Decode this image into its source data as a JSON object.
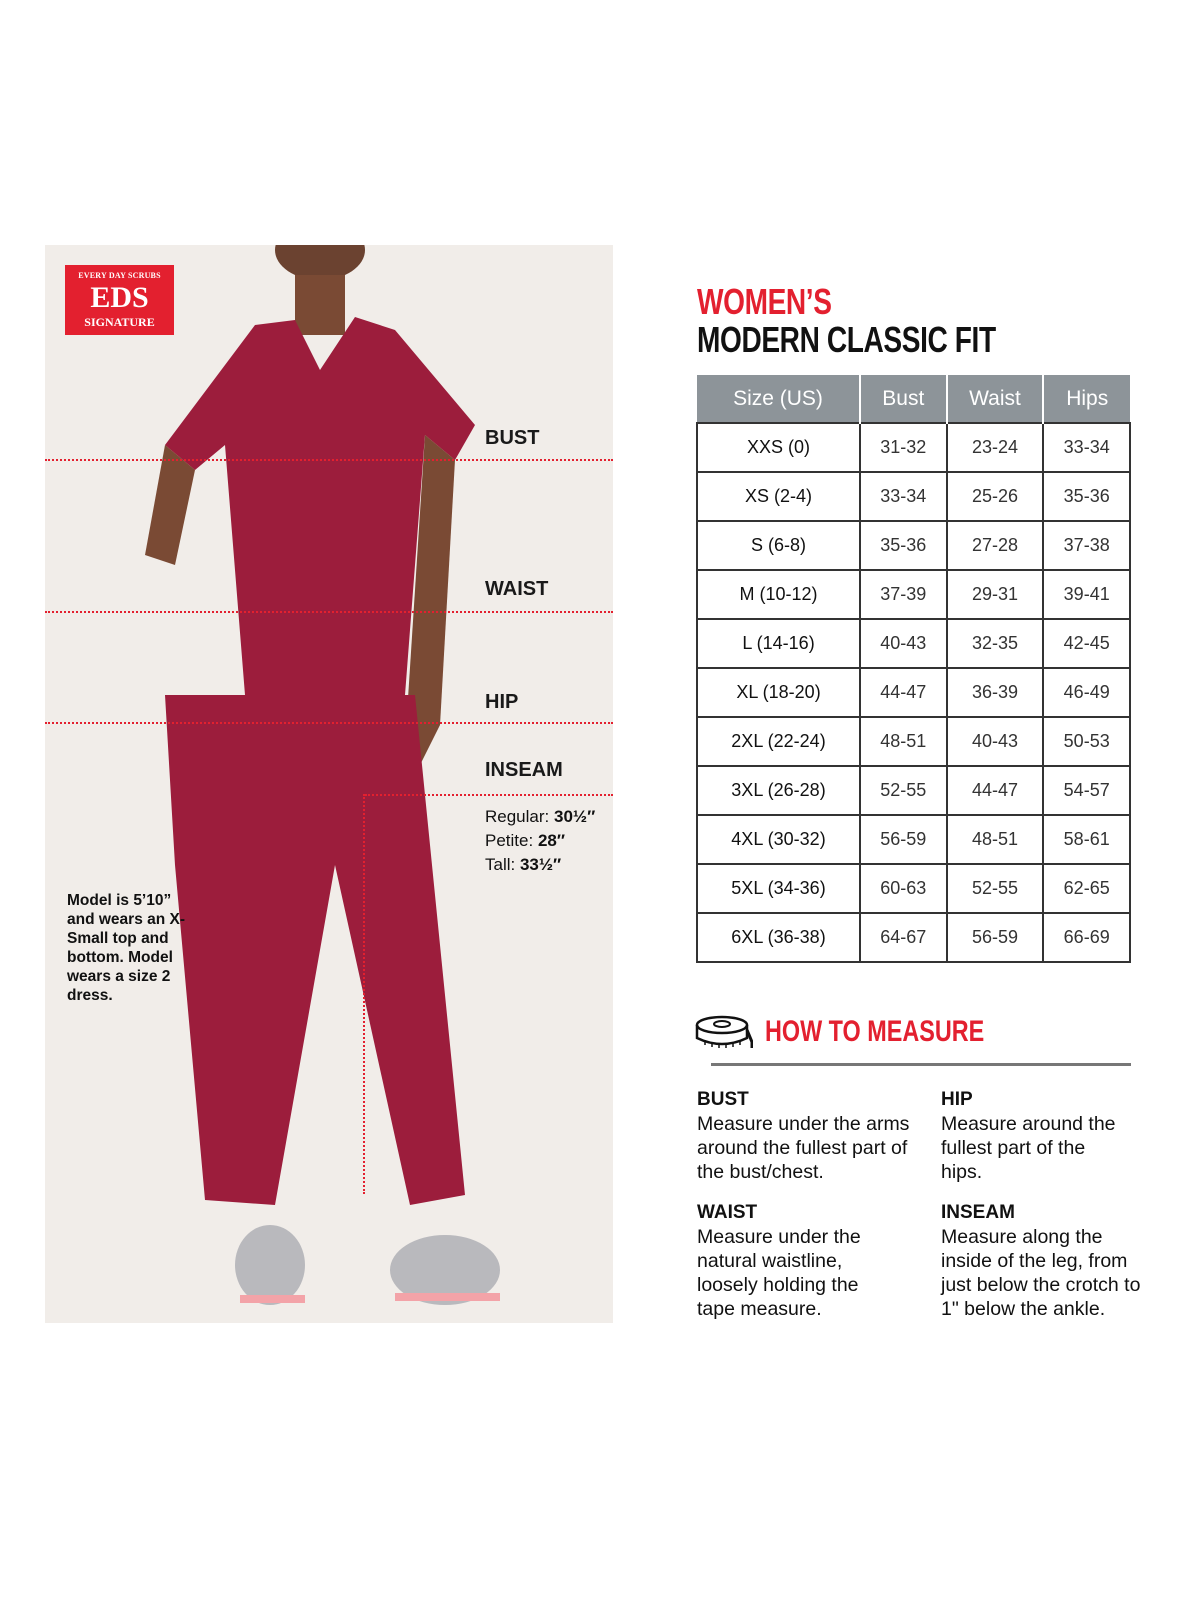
{
  "brand": {
    "logo_top": "EVERY DAY SCRUBS",
    "logo_main": "EDS",
    "logo_bottom": "SIGNATURE",
    "color": "#e3202f"
  },
  "figure": {
    "labels": {
      "bust": "BUST",
      "waist": "WAIST",
      "hip": "HIP",
      "inseam": "INSEAM"
    },
    "inseam": [
      {
        "label": "Regular:",
        "value": "30½″"
      },
      {
        "label": "Petite:",
        "value": "28″"
      },
      {
        "label": "Tall:",
        "value": "33½″"
      }
    ],
    "model_note": "Model is 5’10” and wears an X-Small top and bottom. Model wears a size 2 dress.",
    "scrub_color": "#9c1d3c"
  },
  "chart": {
    "title_line1": "WOMEN’S",
    "title_line2": "MODERN CLASSIC FIT",
    "headers": [
      "Size (US)",
      "Bust",
      "Waist",
      "Hips"
    ],
    "rows": [
      [
        "XXS (0)",
        "31-32",
        "23-24",
        "33-34"
      ],
      [
        "XS (2-4)",
        "33-34",
        "25-26",
        "35-36"
      ],
      [
        "S (6-8)",
        "35-36",
        "27-28",
        "37-38"
      ],
      [
        "M (10-12)",
        "37-39",
        "29-31",
        "39-41"
      ],
      [
        "L (14-16)",
        "40-43",
        "32-35",
        "42-45"
      ],
      [
        "XL (18-20)",
        "44-47",
        "36-39",
        "46-49"
      ],
      [
        "2XL (22-24)",
        "48-51",
        "40-43",
        "50-53"
      ],
      [
        "3XL (26-28)",
        "52-55",
        "44-47",
        "54-57"
      ],
      [
        "4XL (30-32)",
        "56-59",
        "48-51",
        "58-61"
      ],
      [
        "5XL (34-36)",
        "60-63",
        "52-55",
        "62-65"
      ],
      [
        "6XL (36-38)",
        "64-67",
        "56-59",
        "66-69"
      ]
    ]
  },
  "how_to_measure": {
    "heading": "HOW TO MEASURE",
    "icon": "tape-measure-icon",
    "items": [
      {
        "title": "BUST",
        "text": "Measure under the arms around the fullest part of the bust/chest."
      },
      {
        "title": "HIP",
        "text": "Measure around the fullest part of the hips."
      },
      {
        "title": "WAIST",
        "text": "Measure under the natural waistline, loosely holding the tape measure."
      },
      {
        "title": "INSEAM",
        "text": "Measure along the inside of the leg, from just below the crotch to 1\" below the ankle."
      }
    ]
  }
}
